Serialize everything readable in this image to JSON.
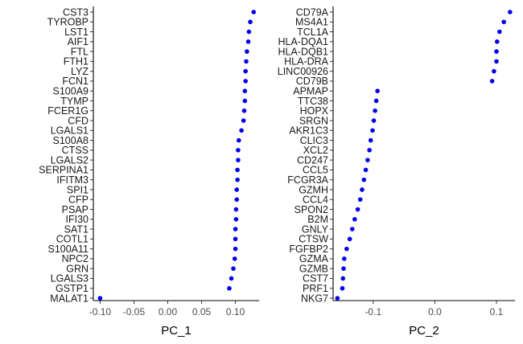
{
  "chart_data": [
    {
      "type": "scatter",
      "xlabel": "PC_1",
      "xlim": [
        -0.11,
        0.135
      ],
      "x_ticks": [
        -0.1,
        -0.05,
        0.0,
        0.05,
        0.1
      ],
      "x_tick_labels": [
        "-0.10",
        "-0.05",
        "0.00",
        "0.05",
        "0.10"
      ],
      "point_color": "#0000ee",
      "categories": [
        "CST3",
        "TYROBP",
        "LST1",
        "AIF1",
        "FTL",
        "FTH1",
        "LYZ",
        "FCN1",
        "S100A9",
        "TYMP",
        "FCER1G",
        "CFD",
        "LGALS1",
        "S100A8",
        "CTSS",
        "LGALS2",
        "SERPINA1",
        "IFITM3",
        "SPI1",
        "CFP",
        "PSAP",
        "IFI30",
        "SAT1",
        "COTL1",
        "S100A11",
        "NPC2",
        "GRN",
        "LGALS3",
        "GSTP1",
        "MALAT1"
      ],
      "values": [
        0.127,
        0.122,
        0.12,
        0.119,
        0.117,
        0.116,
        0.115,
        0.115,
        0.114,
        0.114,
        0.113,
        0.112,
        0.109,
        0.105,
        0.104,
        0.104,
        0.103,
        0.103,
        0.102,
        0.102,
        0.101,
        0.101,
        0.1,
        0.1,
        0.1,
        0.099,
        0.097,
        0.094,
        0.091,
        -0.1
      ]
    },
    {
      "type": "scatter",
      "xlabel": "PC_2",
      "xlim": [
        -0.165,
        0.13
      ],
      "x_ticks": [
        -0.1,
        0.0,
        0.1
      ],
      "x_tick_labels": [
        "-0.1",
        "0.0",
        "0.1"
      ],
      "point_color": "#0000ee",
      "categories": [
        "CD79A",
        "MS4A1",
        "TCL1A",
        "HLA-DQA1",
        "HLA-DQB1",
        "HLA-DRA",
        "LINC00926",
        "CD79B",
        "APMAP",
        "TTC38",
        "HOPX",
        "SRGN",
        "AKR1C3",
        "CLIC3",
        "XCL2",
        "CD247",
        "CCL5",
        "FCGR3A",
        "GZMH",
        "CCL4",
        "SPON2",
        "B2M",
        "GNLY",
        "CTSW",
        "FGFBP2",
        "GZMA",
        "GZMB",
        "CST7",
        "PRF1",
        "NKG7"
      ],
      "values": [
        0.122,
        0.112,
        0.105,
        0.101,
        0.1,
        0.1,
        0.096,
        0.093,
        -0.093,
        -0.095,
        -0.097,
        -0.099,
        -0.101,
        -0.104,
        -0.106,
        -0.109,
        -0.112,
        -0.115,
        -0.118,
        -0.121,
        -0.125,
        -0.13,
        -0.134,
        -0.138,
        -0.143,
        -0.147,
        -0.148,
        -0.149,
        -0.15,
        -0.158
      ]
    }
  ]
}
